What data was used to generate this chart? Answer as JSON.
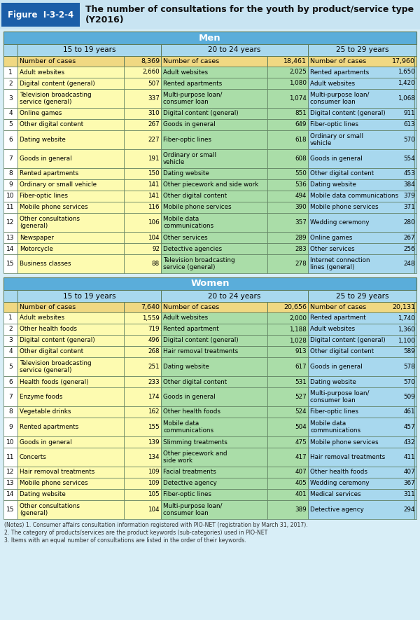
{
  "title_label": "Figure  I-3-2-4",
  "title_text": "The number of consultations for the youth by product/service type\n(Y2016)",
  "age_groups": [
    "15 to 19 years",
    "20 to 24 years",
    "25 to 29 years"
  ],
  "men_num_cases": [
    8369,
    18461,
    17960
  ],
  "women_num_cases": [
    7640,
    20656,
    20131
  ],
  "men_data": [
    [
      [
        "Adult websites",
        2660
      ],
      [
        "Adult websites",
        2025
      ],
      [
        "Rented apartments",
        1650
      ]
    ],
    [
      [
        "Digital content (general)",
        507
      ],
      [
        "Rented apartments",
        1080
      ],
      [
        "Adult websites",
        1420
      ]
    ],
    [
      [
        "Television broadcasting\nservice (general)",
        337
      ],
      [
        "Multi-purpose loan/\nconsumer loan",
        1074
      ],
      [
        "Multi-purpose loan/\nconsumer loan",
        1068
      ]
    ],
    [
      [
        "Online games",
        310
      ],
      [
        "Digital content (general)",
        851
      ],
      [
        "Digital content (general)",
        911
      ]
    ],
    [
      [
        "Other digital content",
        267
      ],
      [
        "Goods in general",
        649
      ],
      [
        "Fiber-optic lines",
        613
      ]
    ],
    [
      [
        "Dating website",
        227
      ],
      [
        "Fiber-optic lines",
        618
      ],
      [
        "Ordinary or small\nvehicle",
        570
      ]
    ],
    [
      [
        "Goods in general",
        191
      ],
      [
        "Ordinary or small\nvehicle",
        608
      ],
      [
        "Goods in general",
        554
      ]
    ],
    [
      [
        "Rented apartments",
        150
      ],
      [
        "Dating website",
        550
      ],
      [
        "Other digital content",
        453
      ]
    ],
    [
      [
        "Ordinary or small vehicle",
        141
      ],
      [
        "Other piecework and side work",
        536
      ],
      [
        "Dating website",
        384
      ]
    ],
    [
      [
        "Fiber-optic lines",
        141
      ],
      [
        "Other digital content",
        494
      ],
      [
        "Mobile data communications",
        379
      ]
    ],
    [
      [
        "Mobile phone services",
        116
      ],
      [
        "Mobile phone services",
        390
      ],
      [
        "Mobile phone services",
        371
      ]
    ],
    [
      [
        "Other consultations\n(general)",
        106
      ],
      [
        "Mobile data\ncommunications",
        357
      ],
      [
        "Wedding ceremony",
        280
      ]
    ],
    [
      [
        "Newspaper",
        104
      ],
      [
        "Other services",
        289
      ],
      [
        "Online games",
        267
      ]
    ],
    [
      [
        "Motorcycle",
        92
      ],
      [
        "Detective agencies",
        283
      ],
      [
        "Other services",
        256
      ]
    ],
    [
      [
        "Business classes",
        88
      ],
      [
        "Television broadcasting\nservice (general)",
        278
      ],
      [
        "Internet connection\nlines (general)",
        248
      ]
    ]
  ],
  "women_data": [
    [
      [
        "Adult websites",
        1559
      ],
      [
        "Adult websites",
        2000
      ],
      [
        "Rented apartment",
        1740
      ]
    ],
    [
      [
        "Other health foods",
        719
      ],
      [
        "Rented apartment",
        1188
      ],
      [
        "Adult websites",
        1360
      ]
    ],
    [
      [
        "Digital content (general)",
        496
      ],
      [
        "Digital content (general)",
        1028
      ],
      [
        "Digital content (general)",
        1100
      ]
    ],
    [
      [
        "Other digital content",
        268
      ],
      [
        "Hair removal treatments",
        913
      ],
      [
        "Other digital content",
        589
      ]
    ],
    [
      [
        "Television broadcasting\nservice (general)",
        251
      ],
      [
        "Dating website",
        617
      ],
      [
        "Goods in general",
        578
      ]
    ],
    [
      [
        "Health foods (general)",
        233
      ],
      [
        "Other digital content",
        531
      ],
      [
        "Dating website",
        570
      ]
    ],
    [
      [
        "Enzyme foods",
        174
      ],
      [
        "Goods in general",
        527
      ],
      [
        "Multi-purpose loan/\nconsumer loan",
        509
      ]
    ],
    [
      [
        "Vegetable drinks",
        162
      ],
      [
        "Other health foods",
        524
      ],
      [
        "Fiber-optic lines",
        461
      ]
    ],
    [
      [
        "Rented apartments",
        155
      ],
      [
        "Mobile data\ncommunications",
        504
      ],
      [
        "Mobile data\ncommunications",
        457
      ]
    ],
    [
      [
        "Goods in general",
        139
      ],
      [
        "Slimming treatments",
        475
      ],
      [
        "Mobile phone services",
        432
      ]
    ],
    [
      [
        "Concerts",
        134
      ],
      [
        "Other piecework and\nside work",
        417
      ],
      [
        "Hair removal treatments",
        411
      ]
    ],
    [
      [
        "Hair removal treatments",
        109
      ],
      [
        "Facial treatments",
        407
      ],
      [
        "Other health foods",
        407
      ]
    ],
    [
      [
        "Mobile phone services",
        109
      ],
      [
        "Detective agency",
        405
      ],
      [
        "Wedding ceremony",
        367
      ]
    ],
    [
      [
        "Dating website",
        105
      ],
      [
        "Fiber-optic lines",
        401
      ],
      [
        "Medical services",
        311
      ]
    ],
    [
      [
        "Other consultations\n(general)",
        104
      ],
      [
        "Multi-purpose loan/\nconsumer loan",
        389
      ],
      [
        "Detective agency",
        294
      ]
    ]
  ],
  "notes": [
    "(Notes) 1. Consumer affairs consultation information registered with PIO-NET (registration by March 31, 2017).",
    "2. The category of products/services are the product keywords (sub-categories) used in PIO-NET",
    "3. Items with an equal number of consultations are listed in the order of their keywords."
  ]
}
